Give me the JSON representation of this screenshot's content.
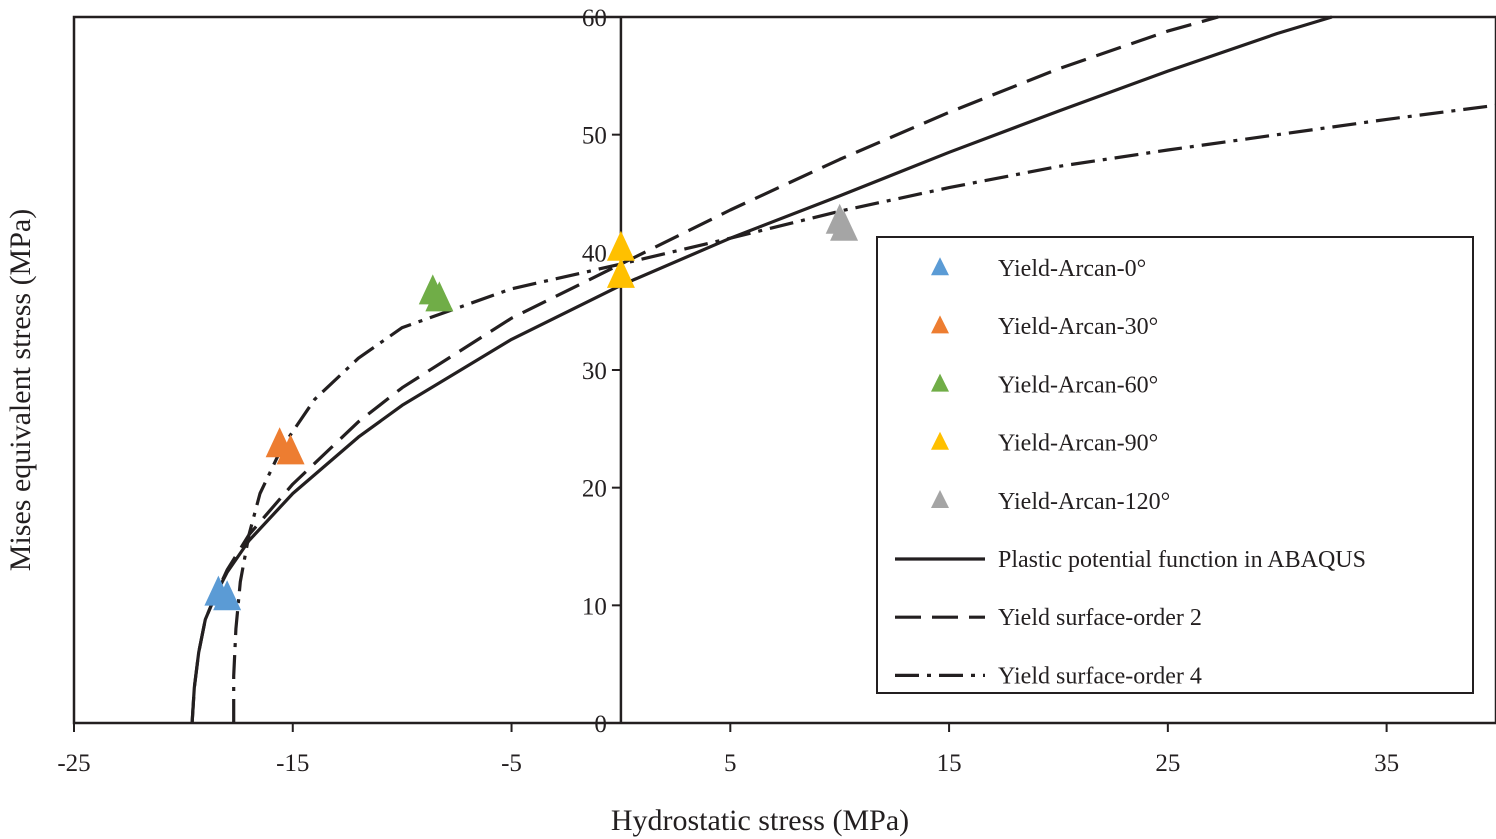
{
  "chart_data": {
    "type": "scatter",
    "title": "",
    "xlabel": "Hydrostatic stress (MPa)",
    "ylabel": "Mises equivalent stress (MPa)",
    "xlim": [
      -25,
      40
    ],
    "ylim": [
      0,
      60
    ],
    "xticks": [
      -25,
      -15,
      -5,
      5,
      15,
      25,
      35
    ],
    "yticks": [
      0,
      10,
      20,
      30,
      40,
      50,
      60
    ],
    "xtick_labels": [
      "-25",
      "-15",
      "-5",
      "5",
      "15",
      "25",
      "35"
    ],
    "ytick_labels": [
      "0",
      "10",
      "20",
      "30",
      "40",
      "50",
      "60"
    ],
    "grid": false,
    "legend_position": "right",
    "point_series": [
      {
        "name": "Yield-Arcan-0°",
        "color": "#5b9bd5",
        "points": [
          [
            -18.4,
            11.0
          ],
          [
            -18.0,
            10.6
          ]
        ]
      },
      {
        "name": "Yield-Arcan-30°",
        "color": "#ed7d31",
        "points": [
          [
            -15.6,
            23.6
          ],
          [
            -15.1,
            23.0
          ]
        ]
      },
      {
        "name": "Yield-Arcan-60°",
        "color": "#70ad47",
        "points": [
          [
            -8.6,
            36.6
          ],
          [
            -8.3,
            36.0
          ]
        ]
      },
      {
        "name": "Yield-Arcan-90°",
        "color": "#ffc000",
        "points": [
          [
            0.0,
            40.3
          ],
          [
            0.0,
            38.0
          ]
        ]
      },
      {
        "name": "Yield-Arcan-120°",
        "color": "#a5a5a5",
        "points": [
          [
            10.0,
            42.6
          ],
          [
            10.2,
            42.0
          ]
        ]
      }
    ],
    "line_series": [
      {
        "name": "Plastic potential function in ABAQUS",
        "style": "solid",
        "color": "#231f20",
        "points": [
          [
            -19.6,
            0
          ],
          [
            -19.5,
            3.0
          ],
          [
            -19.3,
            6.0
          ],
          [
            -19.0,
            8.8
          ],
          [
            -18.5,
            11.0
          ],
          [
            -18.0,
            12.8
          ],
          [
            -17.0,
            15.5
          ],
          [
            -15.0,
            19.5
          ],
          [
            -12.0,
            24.3
          ],
          [
            -10.0,
            27.0
          ],
          [
            -5.0,
            32.6
          ],
          [
            0.0,
            37.2
          ],
          [
            5.0,
            41.2
          ],
          [
            10.0,
            44.8
          ],
          [
            15.0,
            48.5
          ],
          [
            20.0,
            52.0
          ],
          [
            25.0,
            55.4
          ],
          [
            30.0,
            58.6
          ],
          [
            32.5,
            60.0
          ]
        ]
      },
      {
        "name": "Yield surface-order 2",
        "style": "dashed",
        "color": "#231f20",
        "points": [
          [
            -19.6,
            0
          ],
          [
            -19.5,
            3.0
          ],
          [
            -19.3,
            6.0
          ],
          [
            -19.0,
            8.8
          ],
          [
            -18.5,
            11.0
          ],
          [
            -18.0,
            13.0
          ],
          [
            -17.0,
            16.0
          ],
          [
            -15.0,
            20.3
          ],
          [
            -12.0,
            25.6
          ],
          [
            -10.0,
            28.5
          ],
          [
            -5.0,
            34.4
          ],
          [
            0.0,
            39.0
          ],
          [
            5.0,
            43.6
          ],
          [
            10.0,
            47.9
          ],
          [
            15.0,
            51.9
          ],
          [
            20.0,
            55.6
          ],
          [
            25.0,
            58.8
          ],
          [
            27.3,
            60.0
          ]
        ]
      },
      {
        "name": "Yield surface-order 4",
        "style": "dashdot",
        "color": "#231f20",
        "points": [
          [
            -17.7,
            0
          ],
          [
            -17.7,
            4.0
          ],
          [
            -17.6,
            8.0
          ],
          [
            -17.4,
            12.0
          ],
          [
            -17.0,
            16.0
          ],
          [
            -16.5,
            19.5
          ],
          [
            -15.5,
            23.4
          ],
          [
            -14.0,
            27.5
          ],
          [
            -12.0,
            31.0
          ],
          [
            -10.0,
            33.6
          ],
          [
            -5.0,
            36.9
          ],
          [
            0.0,
            39.0
          ],
          [
            5.0,
            41.2
          ],
          [
            10.0,
            43.5
          ],
          [
            15.0,
            45.5
          ],
          [
            20.0,
            47.3
          ],
          [
            25.0,
            48.7
          ],
          [
            30.0,
            50.0
          ],
          [
            35.0,
            51.3
          ],
          [
            40.0,
            52.5
          ]
        ]
      }
    ]
  }
}
